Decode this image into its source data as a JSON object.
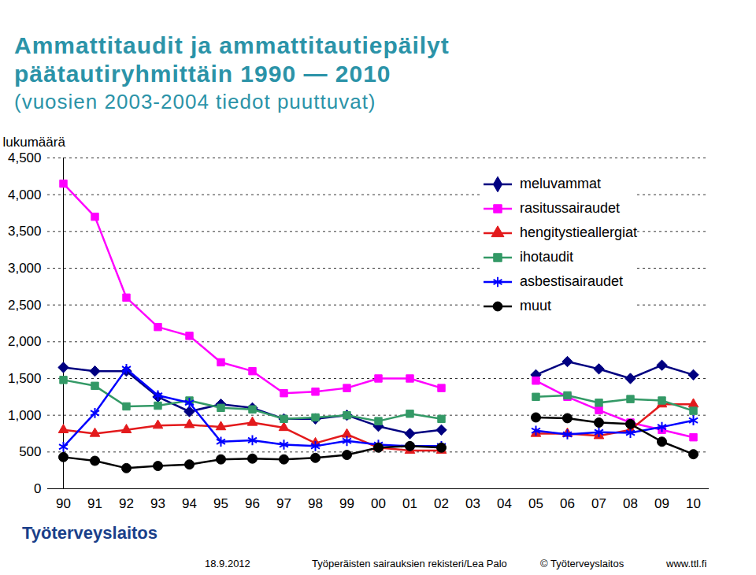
{
  "chart_data": {
    "type": "line",
    "title": "Ammattitaudit ja ammattitautiepäilyt päätautiryhmittäin 1990 — 2010",
    "subtitle": "(vuosien 2003-2004 tiedot puuttuvat)",
    "y_label": "lukumäärä",
    "annotations": [
      "Työterveyslaitos",
      "18.9.2012",
      "Työperäisten sairauksien rekisteri/Lea Palo",
      "© Työterveyslaitos",
      "www.ttl.fi"
    ],
    "categories": [
      "90",
      "91",
      "92",
      "93",
      "94",
      "95",
      "96",
      "97",
      "98",
      "99",
      "00",
      "01",
      "02",
      "03",
      "04",
      "05",
      "06",
      "07",
      "08",
      "09",
      "10"
    ],
    "ylim": [
      0,
      4500
    ],
    "yticks": [
      0,
      500,
      1000,
      1500,
      2000,
      2500,
      3000,
      3500,
      4000,
      4500
    ],
    "grid": true,
    "legend": "top-right",
    "series": [
      {
        "name": "meluvammat",
        "color": "#000080",
        "marker": "diamond",
        "values": [
          1650,
          1600,
          1600,
          1250,
          1050,
          1150,
          1100,
          950,
          950,
          1000,
          850,
          750,
          800,
          null,
          null,
          1550,
          1730,
          1630,
          1500,
          1680,
          1550
        ]
      },
      {
        "name": "rasitussairaudet",
        "color": "#ff00ff",
        "marker": "square",
        "values": [
          4150,
          3700,
          2600,
          2200,
          2080,
          1720,
          1600,
          1300,
          1320,
          1370,
          1500,
          1500,
          1370,
          null,
          null,
          1470,
          1250,
          1070,
          900,
          800,
          700
        ]
      },
      {
        "name": "hengitystieallergiat",
        "color": "#e31a1c",
        "marker": "triangle",
        "values": [
          800,
          750,
          800,
          860,
          870,
          840,
          900,
          830,
          620,
          740,
          560,
          520,
          520,
          null,
          null,
          750,
          750,
          720,
          800,
          1150,
          1150
        ]
      },
      {
        "name": "ihotaudit",
        "color": "#339966",
        "marker": "square",
        "values": [
          1480,
          1400,
          1120,
          1130,
          1200,
          1100,
          1080,
          950,
          970,
          1000,
          920,
          1020,
          950,
          null,
          null,
          1250,
          1270,
          1170,
          1220,
          1200,
          1060
        ]
      },
      {
        "name": "asbestisairaudet",
        "color": "#0000ff",
        "marker": "asterisk",
        "values": [
          570,
          1030,
          1630,
          1270,
          1170,
          640,
          660,
          600,
          580,
          650,
          600,
          580,
          580,
          null,
          null,
          790,
          740,
          770,
          760,
          840,
          930
        ]
      },
      {
        "name": "muut",
        "color": "#000000",
        "marker": "circle",
        "values": [
          430,
          380,
          280,
          310,
          330,
          400,
          410,
          400,
          420,
          460,
          560,
          580,
          560,
          null,
          null,
          970,
          960,
          900,
          880,
          640,
          470
        ]
      }
    ]
  }
}
